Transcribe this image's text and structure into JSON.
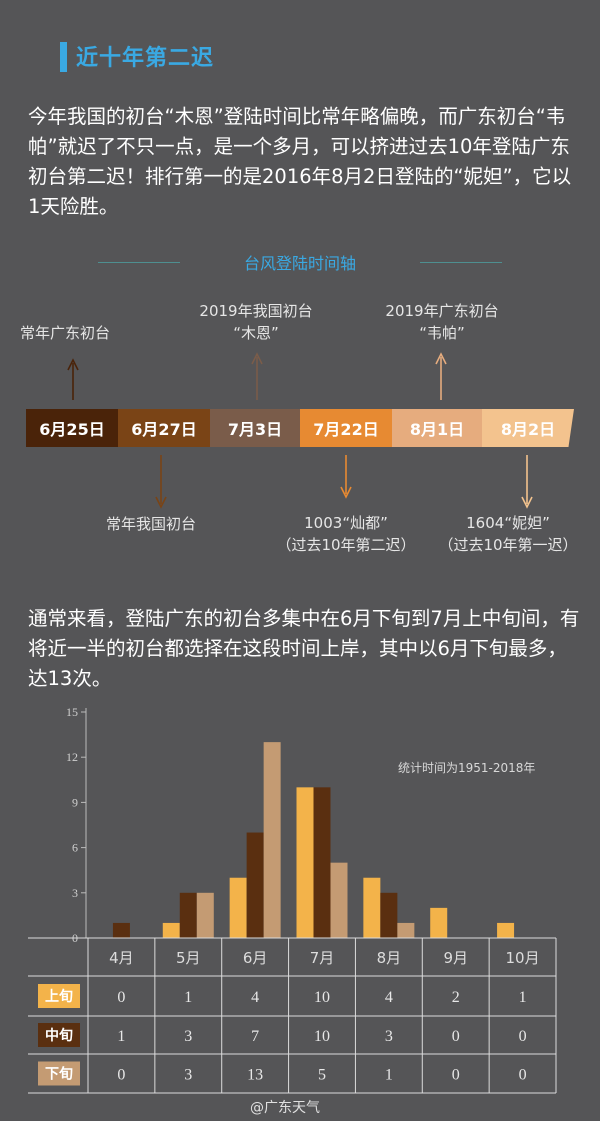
{
  "section": {
    "title": "近十年第二迟"
  },
  "para1": "今年我国的初台“木恩”登陆时间比常年略偏晚，而广东初台“韦帕”就迟了不只一点，是一个多月，可以挤进过去10年登陆广东初台第二迟！排行第一的是2016年8月2日登陆的“妮妲”，它以1天险胜。",
  "timeline": {
    "title": "台风登陆时间轴",
    "dates": [
      {
        "label": "6月25日",
        "bg": "#4a2309",
        "fg": "#ffffff"
      },
      {
        "label": "6月27日",
        "bg": "#7a4416",
        "fg": "#ffffff"
      },
      {
        "label": "7月3日",
        "bg": "#7a5c4a",
        "fg": "#ffffff"
      },
      {
        "label": "7月22日",
        "bg": "#e78a32",
        "fg": "#ffffff"
      },
      {
        "label": "8月1日",
        "bg": "#e6ac7e",
        "fg": "#ffffff"
      },
      {
        "label": "8月2日",
        "bg": "#f3c38e",
        "fg": "#ffffff"
      }
    ],
    "notes_above": [
      {
        "lines": [
          "常年广东初台"
        ]
      },
      {
        "lines": [
          "2019年我国初台",
          "“木恩”"
        ]
      },
      {
        "lines": [
          "2019年广东初台",
          "“韦帕”"
        ]
      }
    ],
    "notes_below": [
      {
        "lines": [
          "常年我国初台"
        ]
      },
      {
        "lines": [
          "1003“灿都”",
          "（过去10年第二迟）"
        ]
      },
      {
        "lines": [
          "1604“妮妲”",
          "（过去10年第一迟）"
        ]
      }
    ]
  },
  "para2": "通常来看，登陆广东的初台多集中在6月下旬到7月上中旬间，有将近一半的初台都选择在这段时间上岸，其中以6月下旬最多，达13次。",
  "chart_note": "统计时间为1951-2018年",
  "chart_data": {
    "type": "bar",
    "categories": [
      "4月",
      "5月",
      "6月",
      "7月",
      "8月",
      "9月",
      "10月"
    ],
    "series": [
      {
        "name": "上旬",
        "color": "#f3b34a",
        "values": [
          0,
          1,
          4,
          10,
          4,
          2,
          1
        ]
      },
      {
        "name": "中旬",
        "color": "#5a2f10",
        "values": [
          1,
          3,
          7,
          10,
          3,
          0,
          0
        ]
      },
      {
        "name": "下旬",
        "color": "#c49b73",
        "values": [
          0,
          3,
          13,
          5,
          1,
          0,
          0
        ]
      }
    ],
    "ylim": [
      0,
      15
    ],
    "yticks": [
      "0",
      "3",
      "6",
      "9",
      "12",
      "15"
    ],
    "table_values": [
      [
        "0",
        "1",
        "4",
        "10",
        "4",
        "2",
        "1"
      ],
      [
        "1",
        "3",
        "7",
        "10",
        "3",
        "0",
        "0"
      ],
      [
        "0",
        "3",
        "13",
        "5",
        "1",
        "0",
        "0"
      ]
    ]
  },
  "watermark": "@广东天气"
}
